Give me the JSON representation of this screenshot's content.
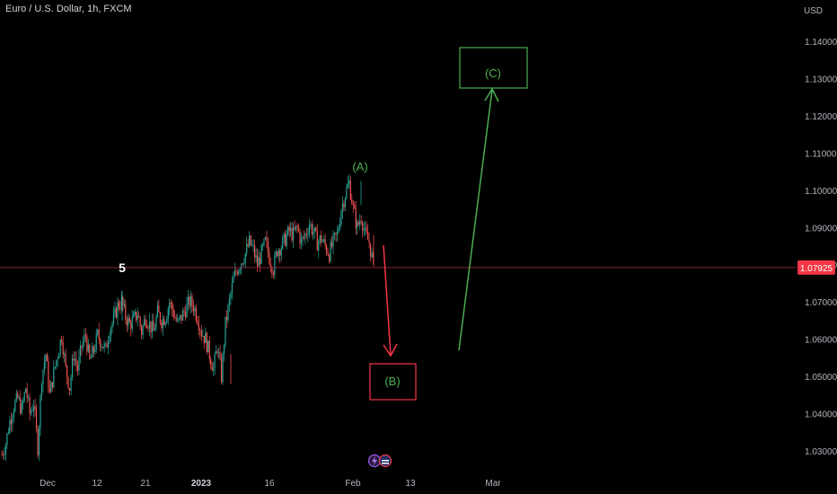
{
  "header": {
    "title": "Euro / U.S. Dollar, 1h, FXCM"
  },
  "chart_data": {
    "type": "candlestick",
    "currency_label": "USD",
    "y_ticks": [
      1.03,
      1.04,
      1.05,
      1.06,
      1.07,
      1.08,
      1.09,
      1.1,
      1.11,
      1.12,
      1.13,
      1.14
    ],
    "y_tick_labels": [
      "1.03000",
      "1.04000",
      "1.05000",
      "1.06000",
      "1.07000",
      "1.08000",
      "1.09000",
      "1.10000",
      "1.11000",
      "1.12000",
      "1.13000",
      "1.14000"
    ],
    "ylim": [
      1.022,
      1.148
    ],
    "x_ticks": [
      {
        "label": "Dec",
        "bold": false
      },
      {
        "label": "12",
        "bold": false
      },
      {
        "label": "21",
        "bold": false
      },
      {
        "label": "2023",
        "bold": true
      },
      {
        "label": "16",
        "bold": false
      },
      {
        "label": "Feb",
        "bold": false
      },
      {
        "label": "13",
        "bold": false
      },
      {
        "label": "Mar",
        "bold": false
      }
    ],
    "last_price": "1.07925",
    "last_price_value": 1.07925,
    "colors": {
      "up": "#26a69a",
      "down": "#ef5350",
      "green_annotation": "#4caf50",
      "red_annotation": "#f23645"
    },
    "price_path": [
      [
        1.029,
        1.032
      ],
      [
        1.038,
        1.042
      ],
      [
        1.044,
        1.041
      ],
      [
        1.047,
        1.04
      ],
      [
        1.043,
        1.031
      ],
      [
        1.05,
        1.056
      ],
      [
        1.045,
        1.051
      ],
      [
        1.056,
        1.061
      ],
      [
        1.052,
        1.047
      ],
      [
        1.056,
        1.052
      ],
      [
        1.058,
        1.061
      ],
      [
        1.054,
        1.057
      ],
      [
        1.061,
        1.059
      ],
      [
        1.057,
        1.063
      ],
      [
        1.065,
        1.069
      ],
      [
        1.07,
        1.066
      ],
      [
        1.064,
        1.065
      ],
      [
        1.067,
        1.062
      ],
      [
        1.066,
        1.064
      ],
      [
        1.062,
        1.067
      ],
      [
        1.065,
        1.066
      ],
      [
        1.07,
        1.067
      ],
      [
        1.064,
        1.066
      ],
      [
        1.068,
        1.07
      ],
      [
        1.069,
        1.066
      ],
      [
        1.062,
        1.06
      ],
      [
        1.056,
        1.052
      ],
      [
        1.058,
        1.05
      ],
      [
        1.064,
        1.07
      ],
      [
        1.076,
        1.079
      ],
      [
        1.081,
        1.083
      ],
      [
        1.086,
        1.084
      ],
      [
        1.08,
        1.083
      ],
      [
        1.086,
        1.082
      ],
      [
        1.079,
        1.084
      ],
      [
        1.085,
        1.087
      ],
      [
        1.089,
        1.088
      ],
      [
        1.09,
        1.086
      ],
      [
        1.088,
        1.091
      ],
      [
        1.089,
        1.086
      ],
      [
        1.087,
        1.085
      ],
      [
        1.083,
        1.086
      ],
      [
        1.088,
        1.095
      ],
      [
        1.099,
        1.102
      ],
      [
        1.095,
        1.09
      ],
      [
        1.093,
        1.088
      ],
      [
        1.086,
        1.08
      ]
    ],
    "annotations": [
      {
        "text": "5",
        "x_idx": 13,
        "price": 1.0765,
        "color": "#ffffff"
      },
      {
        "text": "(A)",
        "x_idx": 43,
        "price": 1.107,
        "color": "#4caf50"
      },
      {
        "text": "(B)",
        "color": "#4caf50"
      },
      {
        "text": "(C)",
        "color": "#4caf50"
      }
    ]
  }
}
